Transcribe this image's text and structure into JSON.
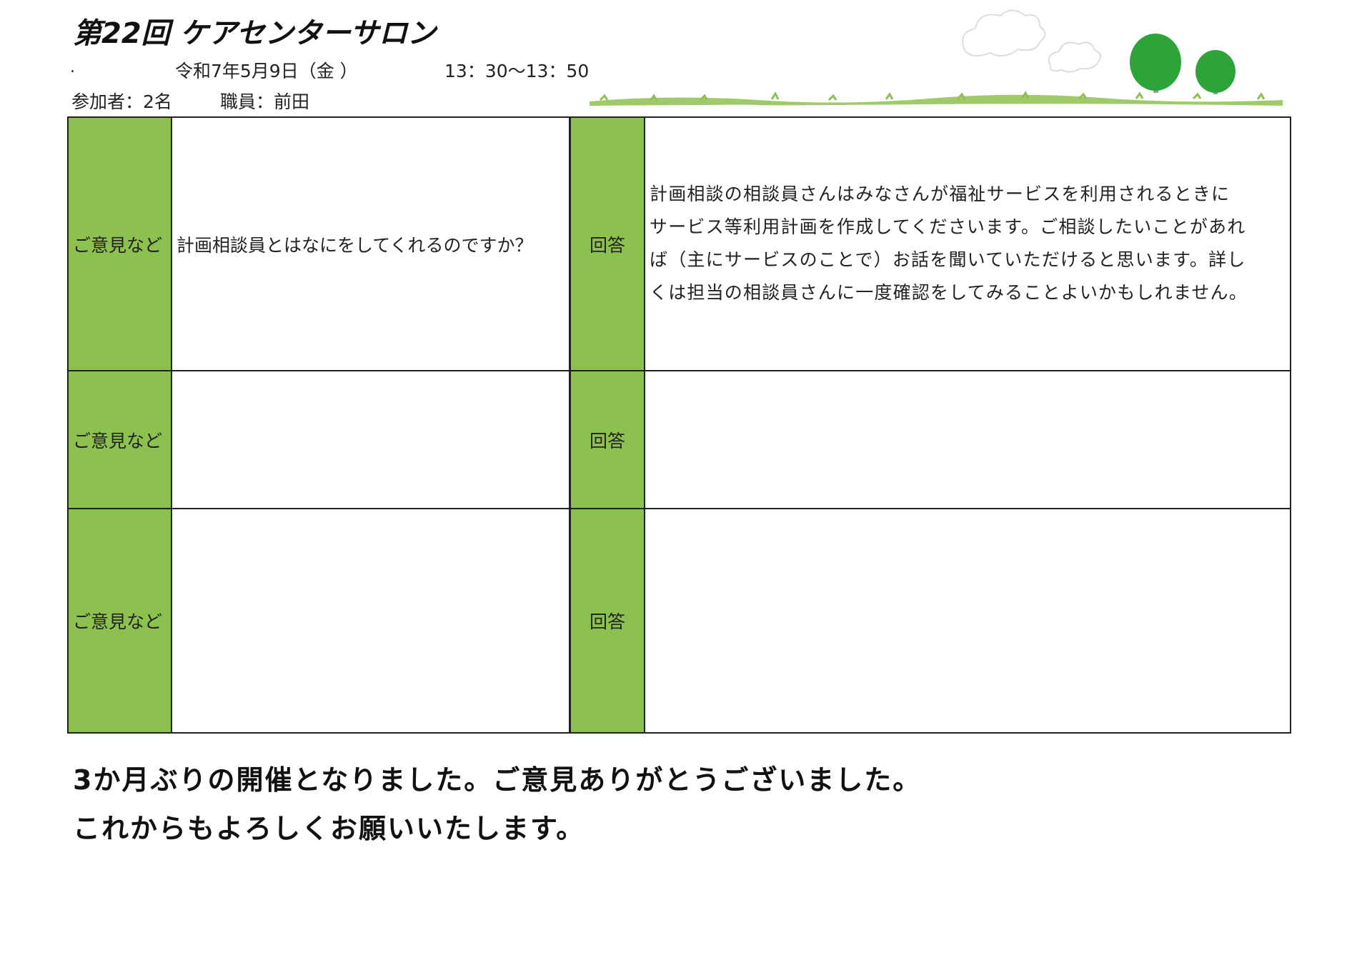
{
  "header": {
    "title": "第22回 ケアセンターサロン",
    "dot": ".",
    "date": "令和7年5月9日（金 ）",
    "time": "13：30～13：50",
    "participants": "参加者：2名",
    "staff": "職員：前田"
  },
  "colors": {
    "label_bg": "#8dc14f",
    "tree_green": "#2da43a",
    "grass_green": "#8dc14f"
  },
  "rows": [
    {
      "question_label": "ご意見など",
      "question": "計画相談員とはなにをしてくれるのですか？",
      "answer_label": "回答",
      "answer_lines": [
        "計画相談の相談員さんはみなさんが福祉サービスを利用されるときに",
        "サービス等利用計画を作成してくださいます。ご相談したいことがあれ",
        "ば（主にサービスのことで）お話を聞いていただけると思います。詳し",
        "くは担当の相談員さんに一度確認をしてみることよいかもしれません。"
      ]
    },
    {
      "question_label": "ご意見など",
      "question": "",
      "answer_label": "回答",
      "answer_lines": []
    },
    {
      "question_label": "ご意見など",
      "question": "",
      "answer_label": "回答",
      "answer_lines": []
    }
  ],
  "footer": {
    "line1": "3か月ぶりの開催となりました。ご意見ありがとうございました。",
    "line2": "これからもよろしくお願いいたします。"
  },
  "decoration": {
    "icons": [
      "cloud-icon",
      "cloud-icon",
      "tree-icon",
      "tree-icon",
      "grass-line"
    ]
  }
}
